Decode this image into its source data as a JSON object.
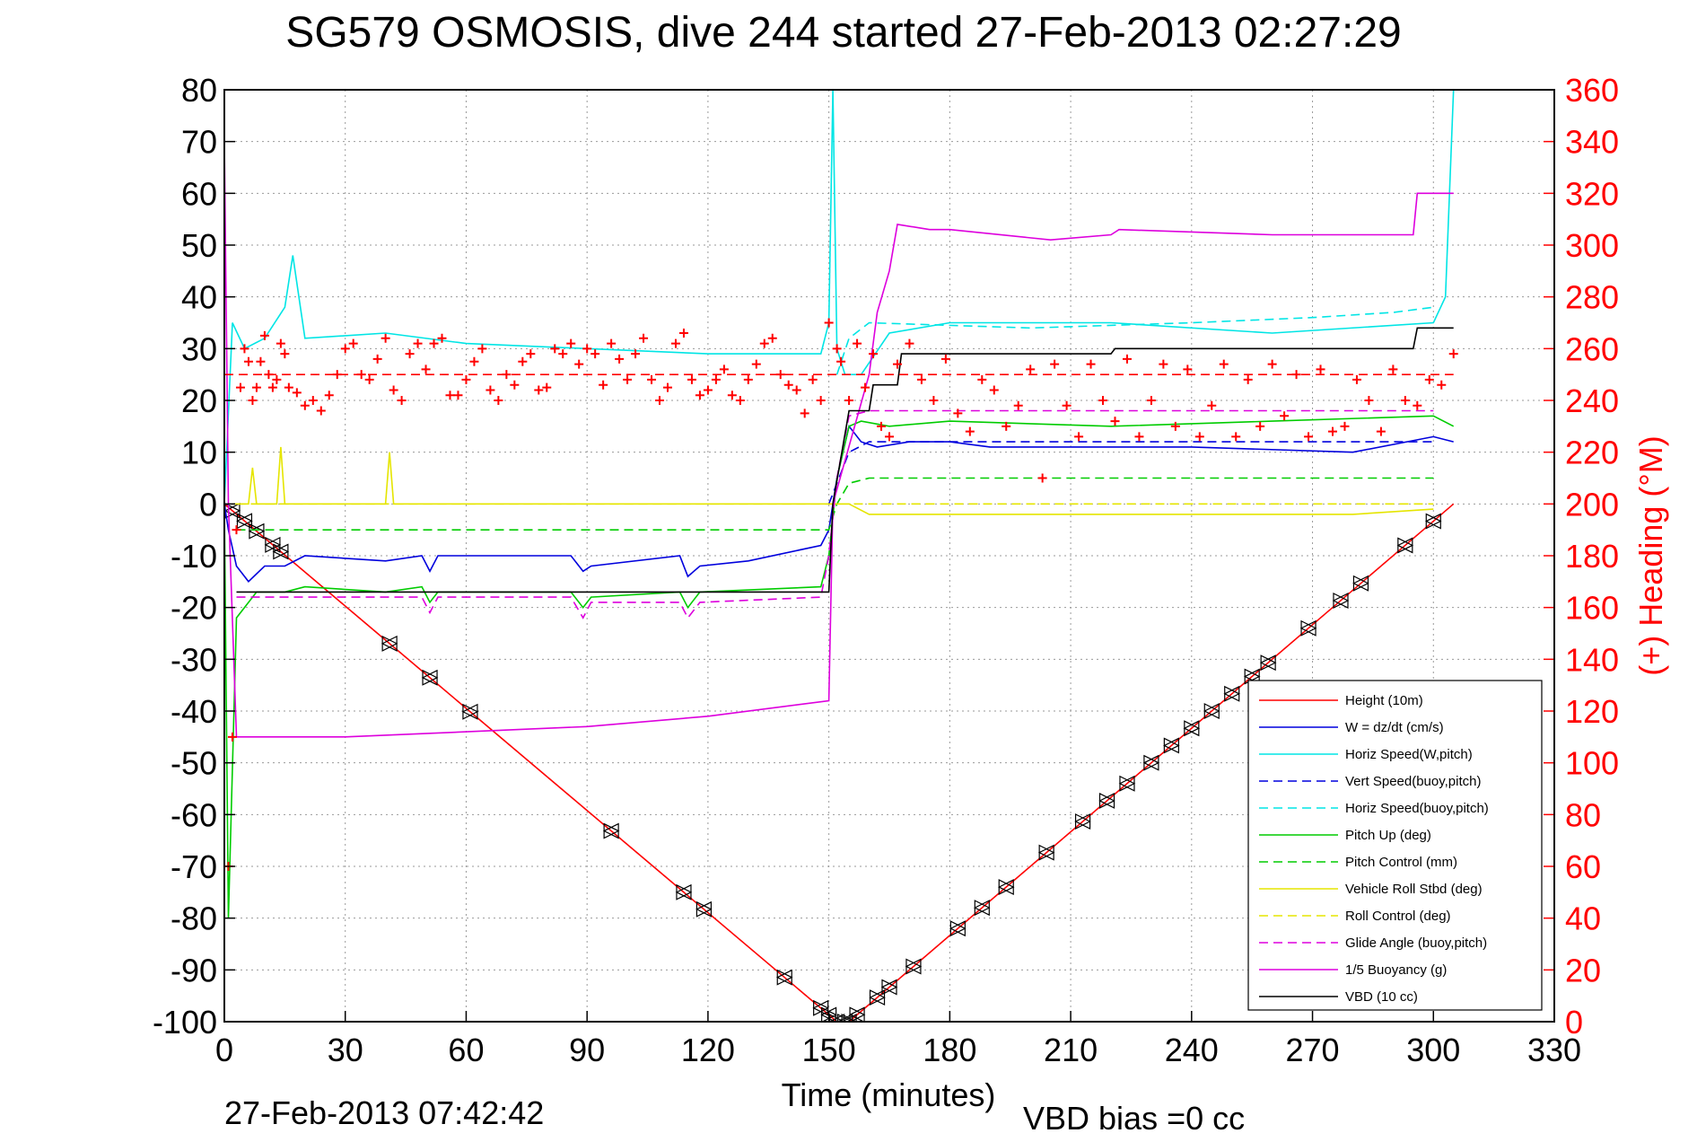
{
  "colors": {
    "red": "#ff0000",
    "blue": "#0000dd",
    "cyan": "#00e5e5",
    "green": "#00cc00",
    "yellow": "#e5e500",
    "magenta": "#dd00dd",
    "black": "#000000",
    "grid": "#9a9a9a"
  },
  "chart_data": {
    "type": "line",
    "title": "SG579 OSMOSIS, dive 244 started 27-Feb-2013 02:27:29",
    "xlabel": "Time (minutes)",
    "ylabel": "",
    "y2label": "(+) Heading (°M)",
    "xlim": [
      0,
      330
    ],
    "ylim": [
      -100,
      80
    ],
    "y2lim": [
      0,
      360
    ],
    "xticks": [
      "0",
      "30",
      "60",
      "90",
      "120",
      "150",
      "180",
      "210",
      "240",
      "270",
      "300",
      "330"
    ],
    "yticks": [
      "80",
      "70",
      "60",
      "50",
      "40",
      "30",
      "20",
      "10",
      "0",
      "-10",
      "-20",
      "-30",
      "-40",
      "-50",
      "-60",
      "-70",
      "-80",
      "-90",
      "-100"
    ],
    "y2ticks": [
      "360",
      "340",
      "320",
      "300",
      "280",
      "260",
      "240",
      "220",
      "200",
      "180",
      "160",
      "140",
      "120",
      "100",
      "80",
      "60",
      "40",
      "20",
      "0"
    ],
    "grid": true,
    "legend_location": "bottom-right",
    "footer_left": "27-Feb-2013 07:42:42",
    "footer_right": "VBD bias =0 cc",
    "series": [
      {
        "name": "Height (10m)",
        "color": "red",
        "dash": "solid",
        "x": [
          0,
          152,
          155,
          305
        ],
        "y": [
          0,
          -100,
          -100,
          0
        ],
        "markers_x": [
          2,
          5,
          8,
          12,
          14,
          41,
          51,
          61,
          96,
          114,
          119,
          139,
          148,
          150,
          152,
          154,
          155,
          157,
          162,
          165,
          171,
          182,
          188,
          194,
          204,
          213,
          219,
          224,
          230,
          235,
          240,
          245,
          250,
          255,
          259,
          269,
          277,
          282,
          293,
          300
        ]
      },
      {
        "name": "W = dz/dt (cm/s)",
        "color": "blue",
        "dash": "solid",
        "x": [
          0,
          1,
          3,
          6,
          10,
          15,
          20,
          40,
          49,
          51,
          53,
          86,
          89,
          91,
          113,
          115,
          118,
          130,
          148,
          150,
          152,
          155,
          158,
          162,
          170,
          180,
          190,
          200,
          240,
          280,
          300,
          305
        ],
        "y": [
          0,
          -5,
          -12,
          -15,
          -12,
          -12,
          -10,
          -11,
          -10,
          -13,
          -10,
          -10,
          -13,
          -12,
          -10,
          -14,
          -12,
          -11,
          -8,
          -5,
          5,
          15,
          12,
          11,
          12,
          12,
          11,
          11,
          11,
          10,
          13,
          12
        ]
      },
      {
        "name": "Horiz Speed(W,pitch)",
        "color": "cyan",
        "dash": "solid",
        "x": [
          0,
          2,
          5,
          10,
          15,
          17,
          20,
          40,
          60,
          90,
          120,
          148,
          150,
          151,
          152,
          154,
          158,
          165,
          180,
          220,
          260,
          300,
          303,
          305
        ],
        "y": [
          0,
          35,
          30,
          32,
          38,
          48,
          32,
          33,
          31,
          30,
          29,
          29,
          35,
          80,
          30,
          25,
          25,
          33,
          35,
          35,
          33,
          35,
          40,
          80
        ]
      },
      {
        "name": "Vert Speed(buoy,pitch)",
        "color": "blue",
        "dash": "dashed",
        "x": [
          150,
          155,
          160,
          200,
          240,
          280,
          300
        ],
        "y": [
          0,
          10,
          12,
          12,
          12,
          12,
          12
        ]
      },
      {
        "name": "Horiz Speed(buoy,pitch)",
        "color": "cyan",
        "dash": "dashed",
        "x": [
          152,
          155,
          160,
          200,
          240,
          270,
          290,
          300
        ],
        "y": [
          25,
          32,
          35,
          34,
          35,
          36,
          37,
          38
        ]
      },
      {
        "name": "Pitch Up (deg)",
        "color": "green",
        "dash": "solid",
        "x": [
          0,
          1,
          3,
          8,
          15,
          20,
          40,
          49,
          51,
          53,
          86,
          89,
          91,
          113,
          115,
          118,
          148,
          150,
          152,
          155,
          158,
          165,
          180,
          220,
          260,
          300,
          305
        ],
        "y": [
          0,
          -80,
          -22,
          -17,
          -17,
          -16,
          -17,
          -16,
          -19,
          -17,
          -17,
          -20,
          -18,
          -17,
          -20,
          -17,
          -16,
          -10,
          5,
          15,
          16,
          15,
          16,
          15,
          16,
          17,
          15
        ]
      },
      {
        "name": "Pitch Control (mm)",
        "color": "green",
        "dash": "dashed",
        "x": [
          3,
          150,
          152,
          155,
          160,
          300
        ],
        "y": [
          -5,
          -5,
          0,
          4,
          5,
          5
        ]
      },
      {
        "name": "Vehicle Roll Stbd (deg)",
        "color": "yellow",
        "dash": "solid",
        "x": [
          2,
          6,
          7,
          8,
          13,
          14,
          15,
          40,
          41,
          42,
          150,
          155,
          160,
          200,
          240,
          280,
          300
        ],
        "y": [
          0,
          0,
          7,
          0,
          0,
          11,
          0,
          0,
          10,
          0,
          0,
          0,
          -2,
          -2,
          -2,
          -2,
          -1
        ]
      },
      {
        "name": "Roll Control (deg)",
        "color": "yellow",
        "dash": "dashed",
        "x": [
          3,
          150,
          152,
          300
        ],
        "y": [
          0,
          0,
          0,
          0
        ]
      },
      {
        "name": "Glide Angle (buoy,pitch)",
        "color": "magenta",
        "dash": "dashed",
        "x": [
          3,
          49,
          51,
          53,
          86,
          89,
          91,
          113,
          115,
          118,
          148,
          150,
          152,
          155,
          160,
          200,
          240,
          280,
          300
        ],
        "y": [
          -18,
          -18,
          -21,
          -18,
          -18,
          -22,
          -19,
          -19,
          -22,
          -19,
          -18,
          -10,
          5,
          17,
          18,
          18,
          18,
          18,
          18
        ]
      },
      {
        "name": "1/5 Buoyancy (g)",
        "color": "magenta",
        "dash": "solid",
        "x": [
          0,
          1,
          3,
          30,
          60,
          90,
          120,
          150,
          151,
          160,
          162,
          165,
          167,
          175,
          180,
          205,
          220,
          222,
          260,
          295,
          296,
          305
        ],
        "y": [
          70,
          0,
          -45,
          -45,
          -44,
          -43,
          -41,
          -38,
          0,
          25,
          37,
          45,
          54,
          53,
          53,
          51,
          52,
          53,
          52,
          52,
          60,
          60
        ]
      },
      {
        "name": "VBD (10 cc)",
        "color": "black",
        "dash": "solid",
        "x": [
          3,
          150,
          151,
          155,
          160,
          161,
          167,
          168,
          220,
          221,
          295,
          296,
          305
        ],
        "y": [
          -17,
          -17,
          0,
          18,
          18,
          23,
          23,
          29,
          29,
          30,
          30,
          34,
          34
        ]
      },
      {
        "name": "Heading",
        "color": "red",
        "dash": "dashed",
        "axis": "right",
        "x": [
          0,
          150,
          152,
          305
        ],
        "y": [
          250,
          250,
          250,
          250
        ]
      }
    ],
    "heading_scatter": {
      "axis": "right",
      "x": [
        1,
        2,
        3,
        4,
        5,
        6,
        7,
        8,
        9,
        10,
        11,
        12,
        13,
        14,
        15,
        16,
        18,
        20,
        22,
        24,
        26,
        28,
        30,
        32,
        34,
        36,
        38,
        40,
        42,
        44,
        46,
        48,
        50,
        52,
        54,
        56,
        58,
        60,
        62,
        64,
        66,
        68,
        70,
        72,
        74,
        76,
        78,
        80,
        82,
        84,
        86,
        88,
        90,
        92,
        94,
        96,
        98,
        100,
        102,
        104,
        106,
        108,
        110,
        112,
        114,
        116,
        118,
        120,
        122,
        124,
        126,
        128,
        130,
        132,
        134,
        136,
        138,
        140,
        142,
        144,
        146,
        148,
        150,
        152,
        153,
        155,
        157,
        159,
        161,
        163,
        165,
        167,
        170,
        173,
        176,
        179,
        182,
        185,
        188,
        191,
        194,
        197,
        200,
        203,
        206,
        209,
        212,
        215,
        218,
        221,
        224,
        227,
        230,
        233,
        236,
        239,
        242,
        245,
        248,
        251,
        254,
        257,
        260,
        263,
        266,
        269,
        272,
        275,
        278,
        281,
        284,
        287,
        290,
        293,
        296,
        299,
        302,
        305
      ],
      "y": [
        60,
        110,
        190,
        245,
        260,
        255,
        240,
        245,
        255,
        265,
        250,
        245,
        248,
        262,
        258,
        245,
        243,
        238,
        240,
        236,
        242,
        250,
        260,
        262,
        250,
        248,
        256,
        264,
        244,
        240,
        258,
        262,
        252,
        262,
        264,
        242,
        242,
        248,
        255,
        260,
        244,
        240,
        250,
        246,
        255,
        258,
        244,
        245,
        260,
        258,
        262,
        254,
        260,
        258,
        246,
        262,
        256,
        248,
        258,
        264,
        248,
        240,
        245,
        262,
        266,
        248,
        242,
        244,
        248,
        252,
        242,
        240,
        248,
        254,
        262,
        264,
        250,
        246,
        244,
        235,
        248,
        240,
        270,
        260,
        255,
        240,
        262,
        245,
        258,
        230,
        226,
        254,
        262,
        248,
        240,
        256,
        235,
        228,
        248,
        244,
        230,
        238,
        252,
        210,
        254,
        238,
        226,
        254,
        240,
        232,
        256,
        226,
        240,
        254,
        230,
        252,
        226,
        238,
        254,
        226,
        248,
        230,
        254,
        234,
        250,
        226,
        252,
        228,
        230,
        248,
        240,
        228,
        252,
        240,
        238,
        248,
        246,
        258
      ]
    }
  }
}
